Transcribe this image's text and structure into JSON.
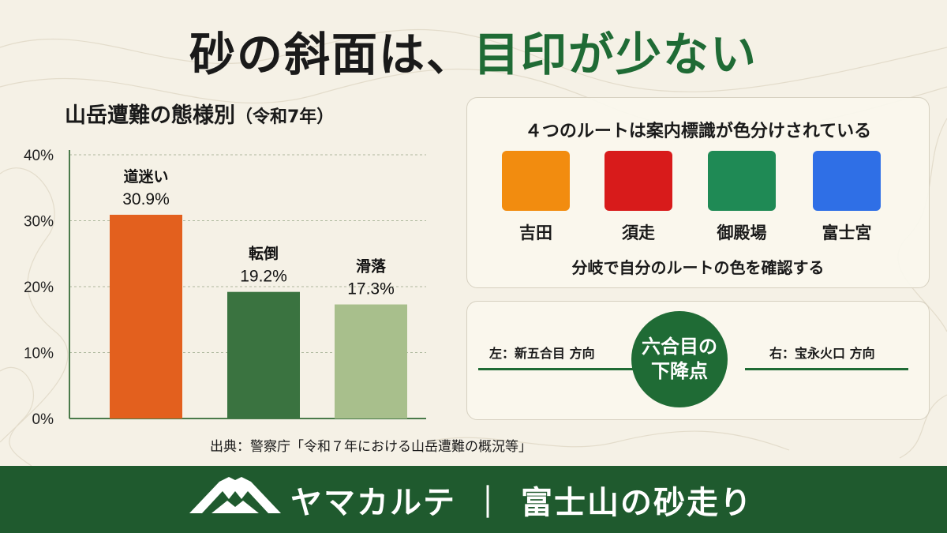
{
  "header": {
    "title_part1": "砂の斜面は、",
    "title_part2": "目印が少ない"
  },
  "chart_data": {
    "type": "bar",
    "title": "山岳遭難の態様別",
    "subtitle": "（令和7年）",
    "categories": [
      "道迷い",
      "転倒",
      "滑落"
    ],
    "values": [
      30.9,
      19.2,
      17.3
    ],
    "value_labels": [
      "30.9%",
      "19.2%",
      "17.3%"
    ],
    "colors": [
      "#e3601e",
      "#3a7340",
      "#a8bf8c"
    ],
    "yticks": [
      "0%",
      "10%",
      "20%",
      "30%",
      "40%"
    ],
    "ylim": [
      0,
      40
    ],
    "grid": true,
    "xlabel": "",
    "ylabel": ""
  },
  "source": "出典：警察庁「令和７年における山岳遭難の概況等」",
  "routes_panel": {
    "title": "４つのルートは案内標識が色分けされている",
    "routes": [
      {
        "name": "吉田",
        "color": "#f28c0f"
      },
      {
        "name": "須走",
        "color": "#d81b1b"
      },
      {
        "name": "御殿場",
        "color": "#1f8a55"
      },
      {
        "name": "富士宮",
        "color": "#2f6fe6"
      }
    ],
    "note": "分岐で自分のルートの色を確認する"
  },
  "junction_panel": {
    "left": "左：新五合目 方向",
    "right": "右：宝永火口 方向",
    "center_line1": "六合目の",
    "center_line2": "下降点"
  },
  "footer": {
    "brand": "ヤマカルテ",
    "separator": "｜",
    "subtitle": "富士山の砂走り"
  },
  "colors": {
    "accent_green": "#1f6b35",
    "footer_green": "#1f5a2e",
    "background": "#f5f1e6"
  }
}
